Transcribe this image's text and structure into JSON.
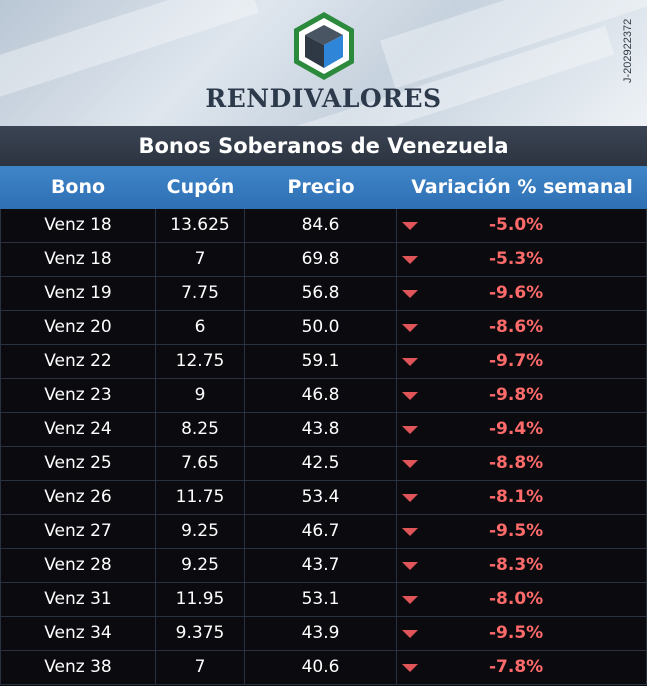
{
  "brand": {
    "name": "RENDIVALORES",
    "rif": "J-202922372"
  },
  "title": "Bonos Soberanos de Venezuela",
  "columns": [
    "Bono",
    "Cupón",
    "Precio",
    "Variación % semanal"
  ],
  "colors": {
    "negative": "#ff6a6a",
    "arrow": "#e0555a",
    "header_blue": "#3f86c9",
    "title_bar": "#333b49"
  },
  "rows": [
    {
      "bono": "Venz 18",
      "cupon": "13.625",
      "precio": "84.6",
      "variacion": "-5.0%"
    },
    {
      "bono": "Venz 18",
      "cupon": "7",
      "precio": "69.8",
      "variacion": "-5.3%"
    },
    {
      "bono": "Venz 19",
      "cupon": "7.75",
      "precio": "56.8",
      "variacion": "-9.6%"
    },
    {
      "bono": "Venz 20",
      "cupon": "6",
      "precio": "50.0",
      "variacion": "-8.6%"
    },
    {
      "bono": "Venz 22",
      "cupon": "12.75",
      "precio": "59.1",
      "variacion": "-9.7%"
    },
    {
      "bono": "Venz 23",
      "cupon": "9",
      "precio": "46.8",
      "variacion": "-9.8%"
    },
    {
      "bono": "Venz 24",
      "cupon": "8.25",
      "precio": "43.8",
      "variacion": "-9.4%"
    },
    {
      "bono": "Venz 25",
      "cupon": "7.65",
      "precio": "42.5",
      "variacion": "-8.8%"
    },
    {
      "bono": "Venz 26",
      "cupon": "11.75",
      "precio": "53.4",
      "variacion": "-8.1%"
    },
    {
      "bono": "Venz 27",
      "cupon": "9.25",
      "precio": "46.7",
      "variacion": "-9.5%"
    },
    {
      "bono": "Venz 28",
      "cupon": "9.25",
      "precio": "43.7",
      "variacion": "-8.3%"
    },
    {
      "bono": "Venz 31",
      "cupon": "11.95",
      "precio": "53.1",
      "variacion": "-8.0%"
    },
    {
      "bono": "Venz 34",
      "cupon": "9.375",
      "precio": "43.9",
      "variacion": "-9.5%"
    },
    {
      "bono": "Venz 38",
      "cupon": "7",
      "precio": "40.6",
      "variacion": "-7.8%"
    }
  ]
}
